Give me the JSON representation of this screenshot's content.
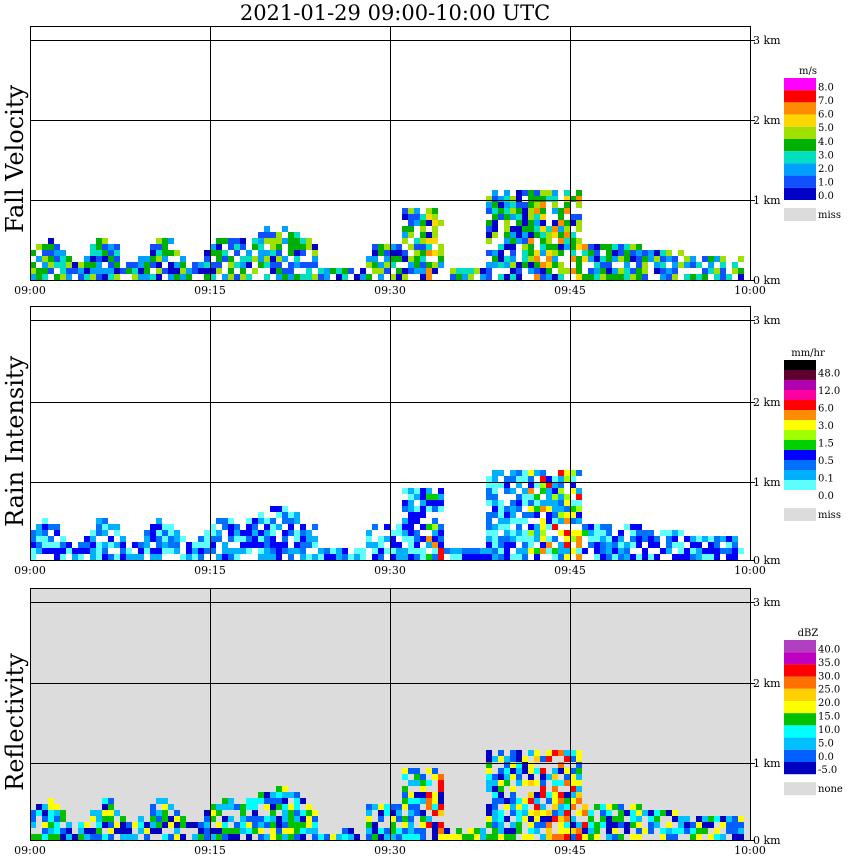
{
  "title": "2021-01-29   09:00-10:00 UTC",
  "x_ticks": [
    "09:00",
    "09:15",
    "09:30",
    "09:45",
    "10:00"
  ],
  "height_ticks": [
    "0 km",
    "1 km",
    "2 km",
    "3 km"
  ],
  "panels": [
    {
      "ylabel": "Fall Velocity",
      "background": "#ffffff",
      "legend": {
        "unit": "m/s",
        "levels": [
          "8.0",
          "7.0",
          "6.0",
          "5.0",
          "4.0",
          "3.0",
          "2.0",
          "1.0",
          "0.0"
        ],
        "colors": [
          "#ff00ff",
          "#ff0000",
          "#ff8c00",
          "#ffd700",
          "#a0e000",
          "#00b000",
          "#00e0c0",
          "#00a0ff",
          "#1050ff",
          "#0000c8"
        ],
        "miss_label": "miss",
        "miss_color": "#dcdcdc"
      }
    },
    {
      "ylabel": "Rain Intensity",
      "background": "#ffffff",
      "legend": {
        "unit": "mm/hr",
        "levels": [
          "48.0",
          "12.0",
          "6.0",
          "3.0",
          "1.5",
          "0.5",
          "0.1",
          "0.0"
        ],
        "colors": [
          "#000000",
          "#600030",
          "#b000b0",
          "#ff00a0",
          "#ff0000",
          "#ff8c00",
          "#ffff00",
          "#a0ff00",
          "#00d000",
          "#0000ff",
          "#0070ff",
          "#00b0ff",
          "#60ffff",
          "#ffffff"
        ],
        "miss_label": "miss",
        "miss_color": "#dcdcdc"
      }
    },
    {
      "ylabel": "Reflectivity",
      "background": "#dcdcdc",
      "legend": {
        "unit": "dBZ",
        "levels": [
          "40.0",
          "35.0",
          "30.0",
          "25.0",
          "20.0",
          "15.0",
          "10.0",
          "5.0",
          "0.0",
          "-5.0"
        ],
        "colors": [
          "#b040c0",
          "#c000c0",
          "#ff0000",
          "#ff7000",
          "#ffd000",
          "#ffff00",
          "#00c000",
          "#00ffff",
          "#00c0ff",
          "#0060ff",
          "#0000c0"
        ],
        "miss_label": "none",
        "miss_color": "#dcdcdc"
      }
    }
  ],
  "chart_data": [
    {
      "type": "heatmap",
      "title": "2021-01-29   09:00-10:00 UTC",
      "ylabel": "Fall Velocity",
      "unit": "m/s",
      "x_range": [
        "09:00",
        "10:00"
      ],
      "y_range_km": [
        0,
        3.1
      ],
      "cells": [
        {
          "t_min": 1.5,
          "h_km": 0.3,
          "v": 2.0
        },
        {
          "t_min": 4,
          "h_km": 0.25,
          "v": 1.0
        },
        {
          "t_min": 8,
          "h_km": 0.4,
          "v": 1.0
        },
        {
          "t_min": 13,
          "h_km": 0.3,
          "v": 1.0
        },
        {
          "t_min": 17,
          "h_km": 0.45,
          "v": 1.0
        },
        {
          "t_min": 21,
          "h_km": 0.4,
          "v": 1.0
        },
        {
          "t_min": 27,
          "h_km": 0.25,
          "v": 2.0
        },
        {
          "t_min": 31,
          "h_km": 0.3,
          "v": 2.0
        },
        {
          "t_min": 33.5,
          "h_km": 0.5,
          "v": 5.0
        },
        {
          "t_min": 40,
          "h_km": 0.5,
          "v": 3.0
        },
        {
          "t_min": 42,
          "h_km": 0.6,
          "v": 4.0
        },
        {
          "t_min": 45,
          "h_km": 0.7,
          "v": 5.5
        },
        {
          "t_min": 48,
          "h_km": 0.3,
          "v": 2.0
        },
        {
          "t_min": 52,
          "h_km": 0.3,
          "v": 1.0
        },
        {
          "t_min": 57,
          "h_km": 0.3,
          "v": 1.0
        }
      ]
    },
    {
      "type": "heatmap",
      "ylabel": "Rain Intensity",
      "unit": "mm/hr",
      "x_range": [
        "09:00",
        "10:00"
      ],
      "y_range_km": [
        0,
        3.1
      ],
      "cells": [
        {
          "t_min": 2,
          "h_km": 0.3,
          "v": 0.1
        },
        {
          "t_min": 10,
          "h_km": 0.3,
          "v": 0.1
        },
        {
          "t_min": 17,
          "h_km": 0.25,
          "v": 1.5
        },
        {
          "t_min": 19,
          "h_km": 0.2,
          "v": 1.5
        },
        {
          "t_min": 31,
          "h_km": 0.3,
          "v": 0.5
        },
        {
          "t_min": 33.5,
          "h_km": 0.85,
          "v": 3.0
        },
        {
          "t_min": 42,
          "h_km": 0.85,
          "v": 6.0
        },
        {
          "t_min": 45,
          "h_km": 0.85,
          "v": 6.0
        },
        {
          "t_min": 45,
          "h_km": 0.25,
          "v": 1.5
        },
        {
          "t_min": 54,
          "h_km": 0.2,
          "v": 0.5
        }
      ]
    },
    {
      "type": "heatmap",
      "ylabel": "Reflectivity",
      "unit": "dBZ",
      "x_range": [
        "09:00",
        "10:00"
      ],
      "y_range_km": [
        0,
        3.1
      ],
      "cells": [
        {
          "t_min": 2,
          "h_km": 0.3,
          "v": 0.0
        },
        {
          "t_min": 8,
          "h_km": 0.3,
          "v": 0.0
        },
        {
          "t_min": 18,
          "h_km": 0.3,
          "v": 15.0
        },
        {
          "t_min": 22,
          "h_km": 0.3,
          "v": 10.0
        },
        {
          "t_min": 33,
          "h_km": 0.3,
          "v": 20.0
        },
        {
          "t_min": 42,
          "h_km": 0.4,
          "v": 20.0
        },
        {
          "t_min": 45,
          "h_km": 0.3,
          "v": 25.0
        },
        {
          "t_min": 54,
          "h_km": 0.2,
          "v": 20.0
        }
      ]
    }
  ]
}
